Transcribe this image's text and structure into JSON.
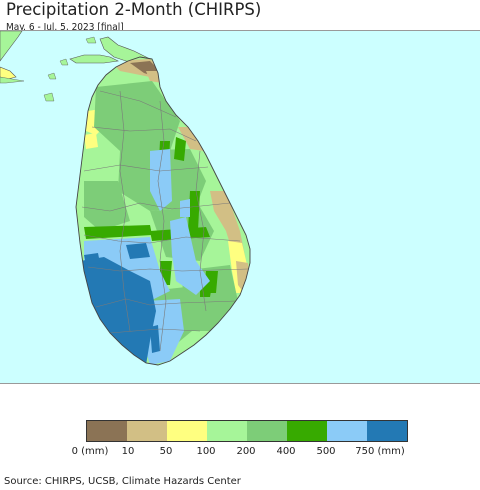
{
  "title": "Precipitation 2-Month (CHIRPS)",
  "subtitle": "May. 6 - Jul. 5, 2023 [final]",
  "legend": {
    "colors": [
      "#8b7355",
      "#d2bf85",
      "#ffff80",
      "#a6f599",
      "#7dcd78",
      "#37aa00",
      "#8bcbf7",
      "#2379b4"
    ],
    "labels": [
      "0 (mm)",
      "10",
      "50",
      "100",
      "200",
      "400",
      "500",
      "750 (mm)"
    ]
  },
  "source": "Source: CHIRPS, UCSB, Climate Hazards Center",
  "map_colors": {
    "ocean": "#ccffff",
    "mainland": "#a6f599"
  }
}
